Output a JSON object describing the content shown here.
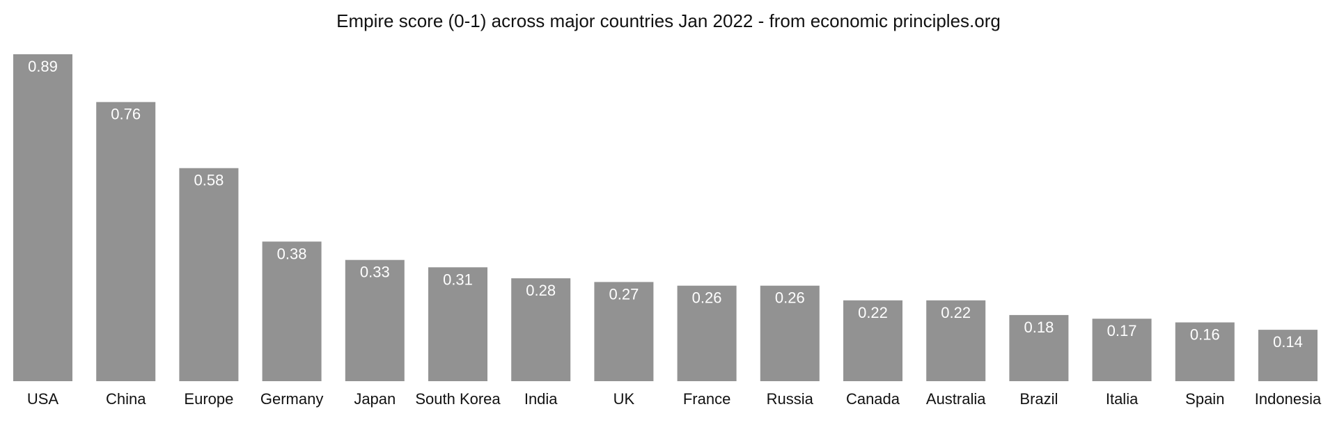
{
  "chart_data": {
    "type": "bar",
    "title": "Empire score (0-1) across major countries Jan 2022 - from economic principles.org",
    "xlabel": "",
    "ylabel": "",
    "categories": [
      "USA",
      "China",
      "Europe",
      "Germany",
      "Japan",
      "South Korea",
      "India",
      "UK",
      "France",
      "Russia",
      "Canada",
      "Australia",
      "Brazil",
      "Italia",
      "Spain",
      "Indonesia"
    ],
    "values": [
      0.89,
      0.76,
      0.58,
      0.38,
      0.33,
      0.31,
      0.28,
      0.27,
      0.26,
      0.26,
      0.22,
      0.22,
      0.18,
      0.17,
      0.16,
      0.14
    ],
    "value_labels": [
      "0.89",
      "0.76",
      "0.58",
      "0.38",
      "0.33",
      "0.31",
      "0.28",
      "0.27",
      "0.26",
      "0.26",
      "0.22",
      "0.22",
      "0.18",
      "0.17",
      "0.16",
      "0.14"
    ],
    "ylim": [
      0,
      0.89
    ],
    "grid": false,
    "legend": "none",
    "bar_color": "#929292",
    "label_color": "#ffffff",
    "text_color": "#111111"
  }
}
